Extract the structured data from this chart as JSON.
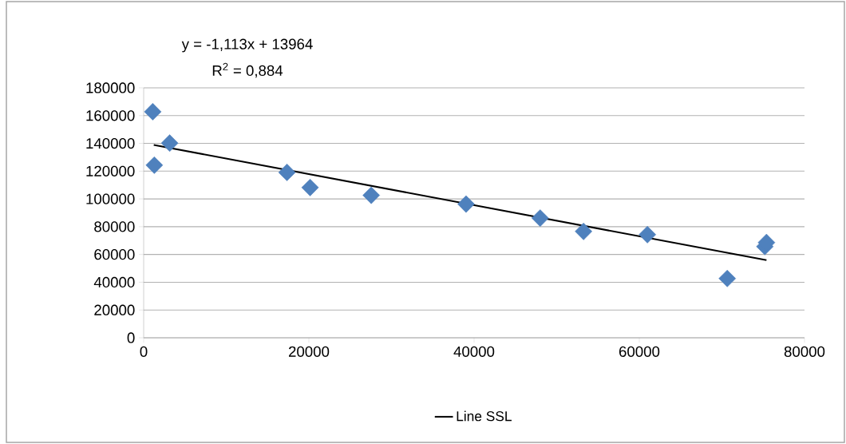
{
  "chart_data": {
    "type": "scatter",
    "series": [
      {
        "color": "#4f81bd",
        "marker": "diamond",
        "x": [
          1100,
          1290,
          3150,
          17350,
          20150,
          27550,
          39030,
          48000,
          53250,
          60980,
          70650,
          75200,
          75400
        ],
        "values": [
          162800,
          124300,
          140200,
          119100,
          108200,
          102600,
          96300,
          86200,
          76600,
          74300,
          42700,
          65700,
          68600
        ]
      },
      {
        "type": "line",
        "name": "Line SSL",
        "color": "#000000",
        "marker": "none",
        "line_style": "solid",
        "x": [
          1220,
          75400
        ],
        "values": [
          138900,
          55900
        ]
      }
    ],
    "annotations": [
      "y = -1,113x + 13964",
      "R$^{2}$ = 0,884"
    ],
    "xlim": [
      0,
      80000
    ],
    "xticks": [
      0,
      20000,
      40000,
      60000,
      80000
    ],
    "ylim": [
      0,
      180000
    ],
    "yticks": [
      0,
      20000,
      40000,
      60000,
      80000,
      100000,
      120000,
      140000,
      160000,
      180000
    ],
    "grid": "y",
    "legend": "bottom"
  }
}
